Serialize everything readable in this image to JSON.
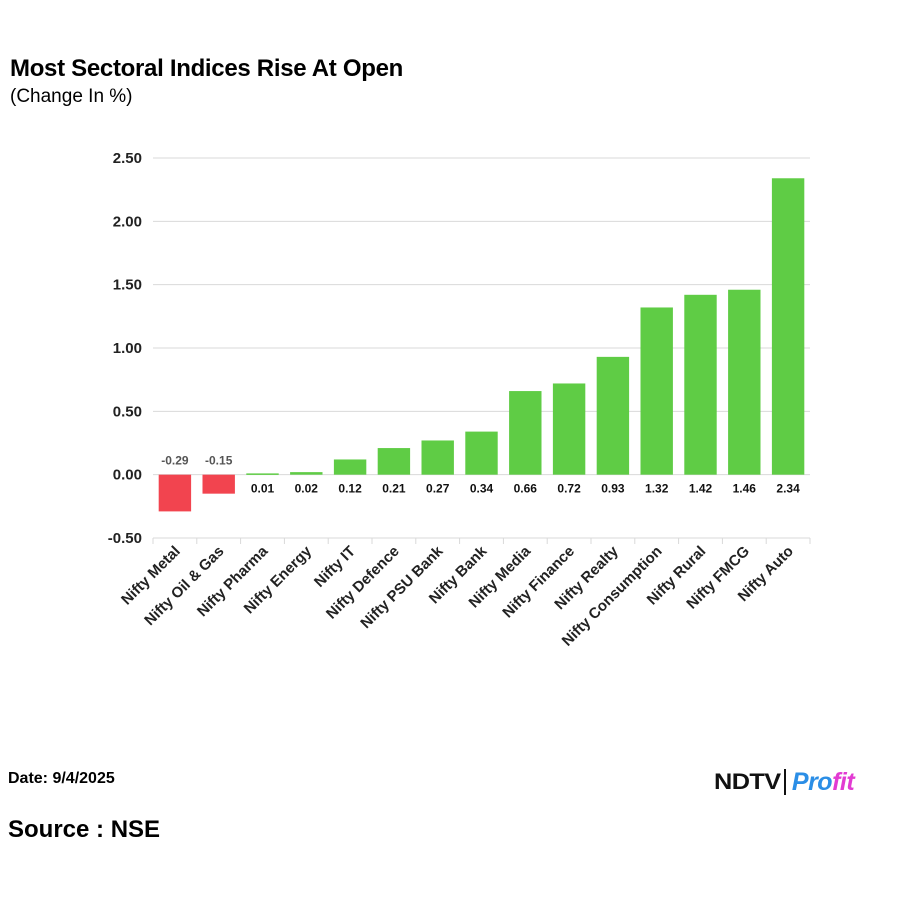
{
  "header": {
    "title": "Most Sectoral Indices Rise At Open",
    "subtitle": "(Change In %)"
  },
  "footer": {
    "date": "Date: 9/4/2025",
    "source": "Source : NSE",
    "logo_left": "NDTV",
    "logo_right_a": "Pro",
    "logo_right_b": "fit"
  },
  "colors": {
    "positive": "#5fcc45",
    "negative": "#f2444f",
    "grid": "#d9d9d9"
  },
  "chart_data": {
    "type": "bar",
    "title": "Most Sectoral Indices Rise At Open",
    "subtitle": "(Change In %)",
    "categories": [
      "Nifty Metal",
      "Nifty Oil & Gas",
      "Nifty Pharma",
      "Nifty Energy",
      "Nifty IT",
      "Nifty Defence",
      "Nifty PSU Bank",
      "Nifty Bank",
      "Nifty Media",
      "Nifty Finance",
      "Nifty Realty",
      "Nifty Consumption",
      "Nifty Rural",
      "Nifty FMCG",
      "Nifty Auto"
    ],
    "values": [
      -0.29,
      -0.15,
      0.01,
      0.02,
      0.12,
      0.21,
      0.27,
      0.34,
      0.66,
      0.72,
      0.93,
      1.32,
      1.42,
      1.46,
      2.34
    ],
    "value_labels": [
      "-0.29",
      "-0.15",
      "0.01",
      "0.02",
      "0.12",
      "0.21",
      "0.27",
      "0.34",
      "0.66",
      "0.72",
      "0.93",
      "1.32",
      "1.42",
      "1.46",
      "2.34"
    ],
    "yticks": [
      2.5,
      2.0,
      1.5,
      1.0,
      0.5,
      0.0,
      -0.5
    ],
    "ytick_labels": [
      "2.50",
      "2.00",
      "1.50",
      "1.00",
      "0.50",
      "0.00",
      "-0.50"
    ],
    "ylim": [
      -0.5,
      2.5
    ],
    "grid": true,
    "legend": "none"
  }
}
